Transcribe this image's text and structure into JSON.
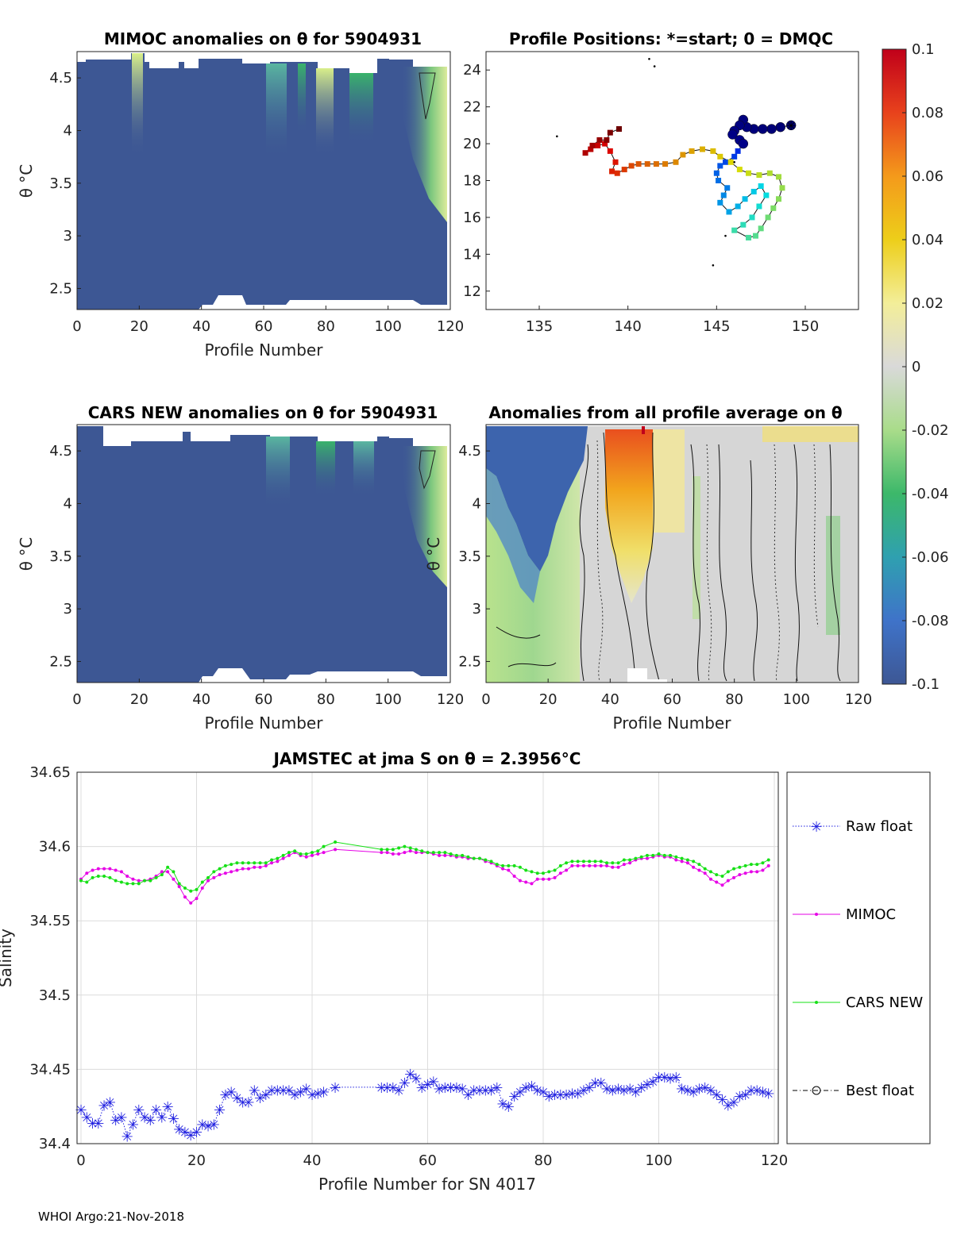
{
  "footer": "WHOI Argo:21-Nov-2018",
  "colors": {
    "raw": "#1f1fe0",
    "mimoc": "#e600e6",
    "cars": "#16e016",
    "best": "#000000",
    "grid": "#dcdcdc",
    "deep_blue": "#3d5794"
  },
  "chart_data": [
    {
      "id": "mimoc",
      "type": "heatmap",
      "title": "MIMOC anomalies on θ  for 5904931",
      "xlabel": "Profile Number",
      "ylabel": "θ °C",
      "xlim": [
        0,
        120
      ],
      "ylim": [
        2.3,
        4.75
      ],
      "xticks": [
        0,
        20,
        40,
        60,
        80,
        100,
        120
      ],
      "yticks": [
        2.5,
        3,
        3.5,
        4,
        4.5
      ],
      "note": "mostly -0.1 (deep blue) with positive anomalies near profiles 18-20 and 105-120 at warm theta"
    },
    {
      "id": "positions",
      "type": "scatter",
      "title": "Profile Positions: *=start; 0 = DMQC",
      "xlim": [
        132,
        153
      ],
      "ylim": [
        11,
        25
      ],
      "xticks": [
        135,
        140,
        145,
        150
      ],
      "yticks": [
        12,
        14,
        16,
        18,
        20,
        22,
        24
      ],
      "track": [
        [
          149.2,
          21.0
        ],
        [
          148.6,
          20.9
        ],
        [
          148.1,
          20.8
        ],
        [
          147.6,
          20.8
        ],
        [
          147.1,
          20.8
        ],
        [
          146.7,
          20.9
        ],
        [
          146.5,
          21.3
        ],
        [
          146.3,
          21.0
        ],
        [
          146.0,
          20.7
        ],
        [
          145.9,
          20.5
        ],
        [
          146.3,
          20.2
        ],
        [
          146.5,
          20.0
        ],
        [
          146.2,
          19.6
        ],
        [
          146.0,
          19.3
        ],
        [
          145.5,
          19.0
        ],
        [
          145.2,
          18.8
        ],
        [
          145.0,
          18.4
        ],
        [
          145.1,
          18.0
        ],
        [
          145.6,
          17.6
        ],
        [
          145.4,
          17.2
        ],
        [
          145.2,
          16.8
        ],
        [
          145.7,
          16.3
        ],
        [
          146.2,
          16.6
        ],
        [
          146.6,
          17.0
        ],
        [
          147.1,
          17.4
        ],
        [
          147.5,
          17.7
        ],
        [
          147.8,
          17.2
        ],
        [
          147.4,
          16.6
        ],
        [
          147.0,
          16.0
        ],
        [
          146.5,
          15.6
        ],
        [
          146.0,
          15.3
        ],
        [
          146.8,
          14.9
        ],
        [
          147.2,
          15.0
        ],
        [
          147.5,
          15.4
        ],
        [
          147.9,
          16.0
        ],
        [
          148.2,
          16.5
        ],
        [
          148.5,
          17.0
        ],
        [
          148.7,
          17.6
        ],
        [
          148.5,
          18.2
        ],
        [
          148.0,
          18.4
        ],
        [
          147.4,
          18.3
        ],
        [
          146.8,
          18.4
        ],
        [
          146.3,
          18.6
        ],
        [
          145.8,
          19.0
        ],
        [
          145.2,
          19.3
        ],
        [
          144.8,
          19.6
        ],
        [
          144.2,
          19.7
        ],
        [
          143.6,
          19.6
        ],
        [
          143.1,
          19.4
        ],
        [
          142.7,
          19.0
        ],
        [
          142.1,
          18.9
        ],
        [
          141.6,
          18.9
        ],
        [
          141.1,
          18.9
        ],
        [
          140.6,
          18.9
        ],
        [
          140.2,
          18.8
        ],
        [
          139.8,
          18.6
        ],
        [
          139.4,
          18.4
        ],
        [
          139.1,
          18.5
        ],
        [
          139.3,
          19.0
        ],
        [
          139.0,
          19.6
        ],
        [
          138.7,
          20.0
        ],
        [
          138.3,
          19.9
        ],
        [
          137.9,
          19.7
        ],
        [
          137.6,
          19.5
        ],
        [
          138.0,
          19.9
        ],
        [
          138.4,
          20.2
        ],
        [
          138.8,
          20.2
        ],
        [
          139.0,
          20.6
        ],
        [
          139.5,
          20.8
        ]
      ]
    },
    {
      "id": "cars",
      "type": "heatmap",
      "title": "CARS NEW anomalies on θ for 5904931",
      "xlabel": "Profile Number",
      "ylabel": "θ °C",
      "xlim": [
        0,
        120
      ],
      "ylim": [
        2.3,
        4.75
      ],
      "xticks": [
        0,
        20,
        40,
        60,
        80,
        100,
        120
      ],
      "yticks": [
        2.5,
        3,
        3.5,
        4,
        4.5
      ]
    },
    {
      "id": "avg",
      "type": "heatmap",
      "title": "Anomalies from all profile average on θ",
      "xlabel": "Profile Number",
      "ylabel": "θ °C",
      "xlim": [
        0,
        120
      ],
      "ylim": [
        2.3,
        4.75
      ],
      "xticks": [
        0,
        20,
        40,
        60,
        80,
        100,
        120
      ],
      "yticks": [
        2.5,
        3,
        3.5,
        4,
        4.5
      ],
      "note": "negative (blue) at profiles 0-30 warm theta, positive (orange) at profiles 38-55"
    },
    {
      "id": "colorbar",
      "type": "colorbar",
      "range": [
        -0.1,
        0.1
      ],
      "ticks": [
        "0.1",
        "0.08",
        "0.06",
        "0.04",
        "0.02",
        "0",
        "-0.02",
        "-0.04",
        "-0.06",
        "-0.08",
        "-0.1"
      ]
    },
    {
      "id": "salinity",
      "type": "line",
      "title": "JAMSTEC at jma S on θ = 2.3956°C",
      "xlabel": "Profile Number for SN 4017",
      "ylabel": "Salinity",
      "xlim": [
        0,
        120
      ],
      "ylim": [
        34.4,
        34.65
      ],
      "xticks": [
        0,
        20,
        40,
        60,
        80,
        100,
        120
      ],
      "yticks": [
        "34.4",
        "34.45",
        "34.5",
        "34.55",
        "34.6",
        "34.65"
      ],
      "x": [
        0,
        1,
        2,
        3,
        4,
        5,
        6,
        7,
        8,
        9,
        10,
        11,
        12,
        13,
        14,
        15,
        16,
        17,
        18,
        19,
        20,
        21,
        22,
        23,
        24,
        25,
        26,
        27,
        28,
        29,
        30,
        31,
        32,
        33,
        34,
        35,
        36,
        37,
        38,
        39,
        40,
        41,
        42,
        44,
        52,
        53,
        54,
        55,
        56,
        57,
        58,
        59,
        60,
        61,
        62,
        63,
        64,
        65,
        66,
        67,
        68,
        69,
        70,
        71,
        72,
        73,
        74,
        75,
        76,
        77,
        78,
        79,
        80,
        81,
        82,
        83,
        84,
        85,
        86,
        87,
        88,
        89,
        90,
        91,
        92,
        93,
        94,
        95,
        96,
        97,
        98,
        99,
        100,
        101,
        102,
        103,
        104,
        105,
        106,
        107,
        108,
        109,
        110,
        111,
        112,
        113,
        114,
        115,
        116,
        117,
        118,
        119
      ],
      "series": [
        {
          "name": "Raw float",
          "values": [
            34.423,
            34.418,
            34.414,
            34.414,
            34.426,
            34.428,
            34.416,
            34.418,
            34.405,
            34.413,
            34.423,
            34.418,
            34.416,
            34.423,
            34.418,
            34.425,
            34.417,
            34.41,
            34.408,
            34.406,
            34.408,
            34.413,
            34.412,
            34.413,
            34.423,
            34.433,
            34.435,
            34.431,
            34.428,
            34.428,
            34.436,
            34.431,
            34.433,
            34.436,
            34.436,
            34.436,
            34.436,
            34.433,
            34.435,
            34.437,
            34.433,
            34.434,
            34.435,
            34.438,
            34.438,
            34.438,
            34.438,
            34.436,
            34.441,
            34.447,
            34.444,
            34.438,
            34.44,
            34.442,
            34.437,
            34.438,
            34.438,
            34.438,
            34.437,
            34.433,
            34.436,
            34.436,
            34.436,
            34.436,
            34.438,
            34.427,
            34.425,
            34.432,
            34.435,
            34.438,
            34.439,
            34.436,
            34.435,
            34.432,
            34.433,
            34.433,
            34.433,
            34.434,
            34.434,
            34.436,
            34.438,
            34.441,
            34.441,
            34.437,
            34.436,
            34.437,
            34.436,
            34.437,
            34.435,
            34.438,
            34.44,
            34.442,
            34.445,
            34.445,
            34.444,
            34.445,
            34.437,
            34.436,
            34.435,
            34.437,
            34.438,
            34.436,
            34.433,
            34.43,
            34.426,
            34.428,
            34.432,
            34.433,
            34.436,
            34.436,
            34.435,
            34.434
          ]
        },
        {
          "name": "MIMOC",
          "values": [
            34.578,
            34.582,
            34.584,
            34.585,
            34.585,
            34.585,
            34.584,
            34.583,
            34.58,
            34.578,
            34.577,
            34.577,
            34.578,
            34.58,
            34.583,
            34.583,
            34.578,
            34.573,
            34.566,
            34.562,
            34.565,
            34.572,
            34.577,
            34.579,
            34.581,
            34.582,
            34.583,
            34.584,
            34.585,
            34.585,
            34.586,
            34.586,
            34.587,
            34.589,
            34.59,
            34.592,
            34.594,
            34.596,
            34.594,
            34.593,
            34.594,
            34.595,
            34.596,
            34.598,
            34.596,
            34.596,
            34.595,
            34.595,
            34.596,
            34.597,
            34.596,
            34.596,
            34.596,
            34.595,
            34.594,
            34.594,
            34.594,
            34.593,
            34.593,
            34.592,
            34.592,
            34.592,
            34.59,
            34.589,
            34.587,
            34.585,
            34.584,
            34.58,
            34.577,
            34.576,
            34.575,
            34.578,
            34.578,
            34.578,
            34.579,
            34.582,
            34.584,
            34.587,
            34.587,
            34.587,
            34.587,
            34.587,
            34.587,
            34.587,
            34.586,
            34.586,
            34.588,
            34.589,
            34.591,
            34.592,
            34.592,
            34.593,
            34.594,
            34.593,
            34.593,
            34.591,
            34.59,
            34.589,
            34.586,
            34.584,
            34.582,
            34.578,
            34.576,
            34.574,
            34.577,
            34.579,
            34.581,
            34.582,
            34.583,
            34.583,
            34.584,
            34.587
          ]
        },
        {
          "name": "CARS NEW",
          "values": [
            34.577,
            34.576,
            34.579,
            34.58,
            34.58,
            34.579,
            34.577,
            34.576,
            34.575,
            34.575,
            34.575,
            34.577,
            34.577,
            34.579,
            34.581,
            34.586,
            34.583,
            34.575,
            34.572,
            34.57,
            34.571,
            34.576,
            34.579,
            34.583,
            34.585,
            34.587,
            34.588,
            34.589,
            34.589,
            34.589,
            34.589,
            34.589,
            34.589,
            34.591,
            34.592,
            34.594,
            34.596,
            34.597,
            34.595,
            34.595,
            34.596,
            34.597,
            34.6,
            34.603,
            34.598,
            34.598,
            34.598,
            34.599,
            34.6,
            34.599,
            34.598,
            34.597,
            34.596,
            34.596,
            34.596,
            34.596,
            34.595,
            34.594,
            34.594,
            34.593,
            34.592,
            34.592,
            34.591,
            34.59,
            34.588,
            34.587,
            34.587,
            34.587,
            34.586,
            34.584,
            34.583,
            34.582,
            34.582,
            34.583,
            34.584,
            34.587,
            34.589,
            34.59,
            34.59,
            34.59,
            34.59,
            34.59,
            34.59,
            34.589,
            34.589,
            34.589,
            34.591,
            34.591,
            34.592,
            34.593,
            34.594,
            34.594,
            34.595,
            34.594,
            34.594,
            34.593,
            34.592,
            34.591,
            34.59,
            34.588,
            34.585,
            34.583,
            34.581,
            34.58,
            34.583,
            34.585,
            34.586,
            34.587,
            34.588,
            34.588,
            34.589,
            34.591
          ]
        }
      ],
      "legend": [
        "Raw float",
        "MIMOC",
        "CARS NEW",
        "Best float"
      ]
    }
  ]
}
